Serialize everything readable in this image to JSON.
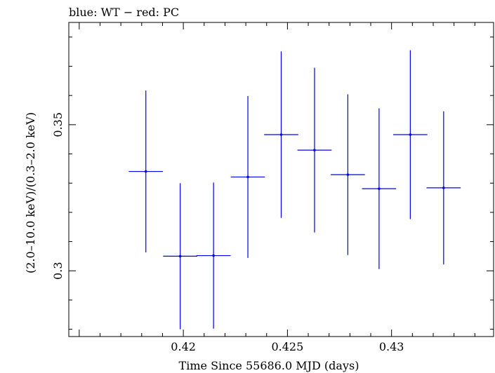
{
  "chart_data": {
    "type": "scatter",
    "title": "blue: WT − red: PC",
    "xlabel": "Time Since 55686.0 MJD (days)",
    "ylabel": "(2.0–10.0 keV)/(0.3–2.0 keV)",
    "xlim": [
      0.4145,
      0.4349
    ],
    "ylim": [
      0.2775,
      0.385
    ],
    "x_ticks": [
      {
        "value": 0.42,
        "label": "0.42"
      },
      {
        "value": 0.425,
        "label": "0.425"
      },
      {
        "value": 0.43,
        "label": "0.43"
      }
    ],
    "y_ticks": [
      {
        "value": 0.3,
        "label": "0.3"
      },
      {
        "value": 0.35,
        "label": "0.35"
      }
    ],
    "grid": false,
    "series": [
      {
        "name": "WT",
        "color": "#0000ee",
        "points": [
          {
            "x": 0.4182,
            "xerr": 0.00082,
            "y": 0.334,
            "yerr_low": 0.0277,
            "yerr_high": 0.0277
          },
          {
            "x": 0.41985,
            "xerr": 0.00082,
            "y": 0.305,
            "yerr_low": 0.025,
            "yerr_high": 0.025
          },
          {
            "x": 0.42145,
            "xerr": 0.00082,
            "y": 0.3052,
            "yerr_low": 0.025,
            "yerr_high": 0.025
          },
          {
            "x": 0.4231,
            "xerr": 0.00082,
            "y": 0.3321,
            "yerr_low": 0.0277,
            "yerr_high": 0.0277
          },
          {
            "x": 0.4247,
            "xerr": 0.00082,
            "y": 0.3466,
            "yerr_low": 0.0285,
            "yerr_high": 0.0285
          },
          {
            "x": 0.4263,
            "xerr": 0.00082,
            "y": 0.3413,
            "yerr_low": 0.0282,
            "yerr_high": 0.0282
          },
          {
            "x": 0.4279,
            "xerr": 0.00082,
            "y": 0.3329,
            "yerr_low": 0.0275,
            "yerr_high": 0.0275
          },
          {
            "x": 0.4294,
            "xerr": 0.00082,
            "y": 0.3281,
            "yerr_low": 0.0275,
            "yerr_high": 0.0275
          },
          {
            "x": 0.4309,
            "xerr": 0.00082,
            "y": 0.3466,
            "yerr_low": 0.0289,
            "yerr_high": 0.0289
          },
          {
            "x": 0.4325,
            "xerr": 0.00082,
            "y": 0.3284,
            "yerr_low": 0.0262,
            "yerr_high": 0.0262
          }
        ]
      }
    ]
  }
}
